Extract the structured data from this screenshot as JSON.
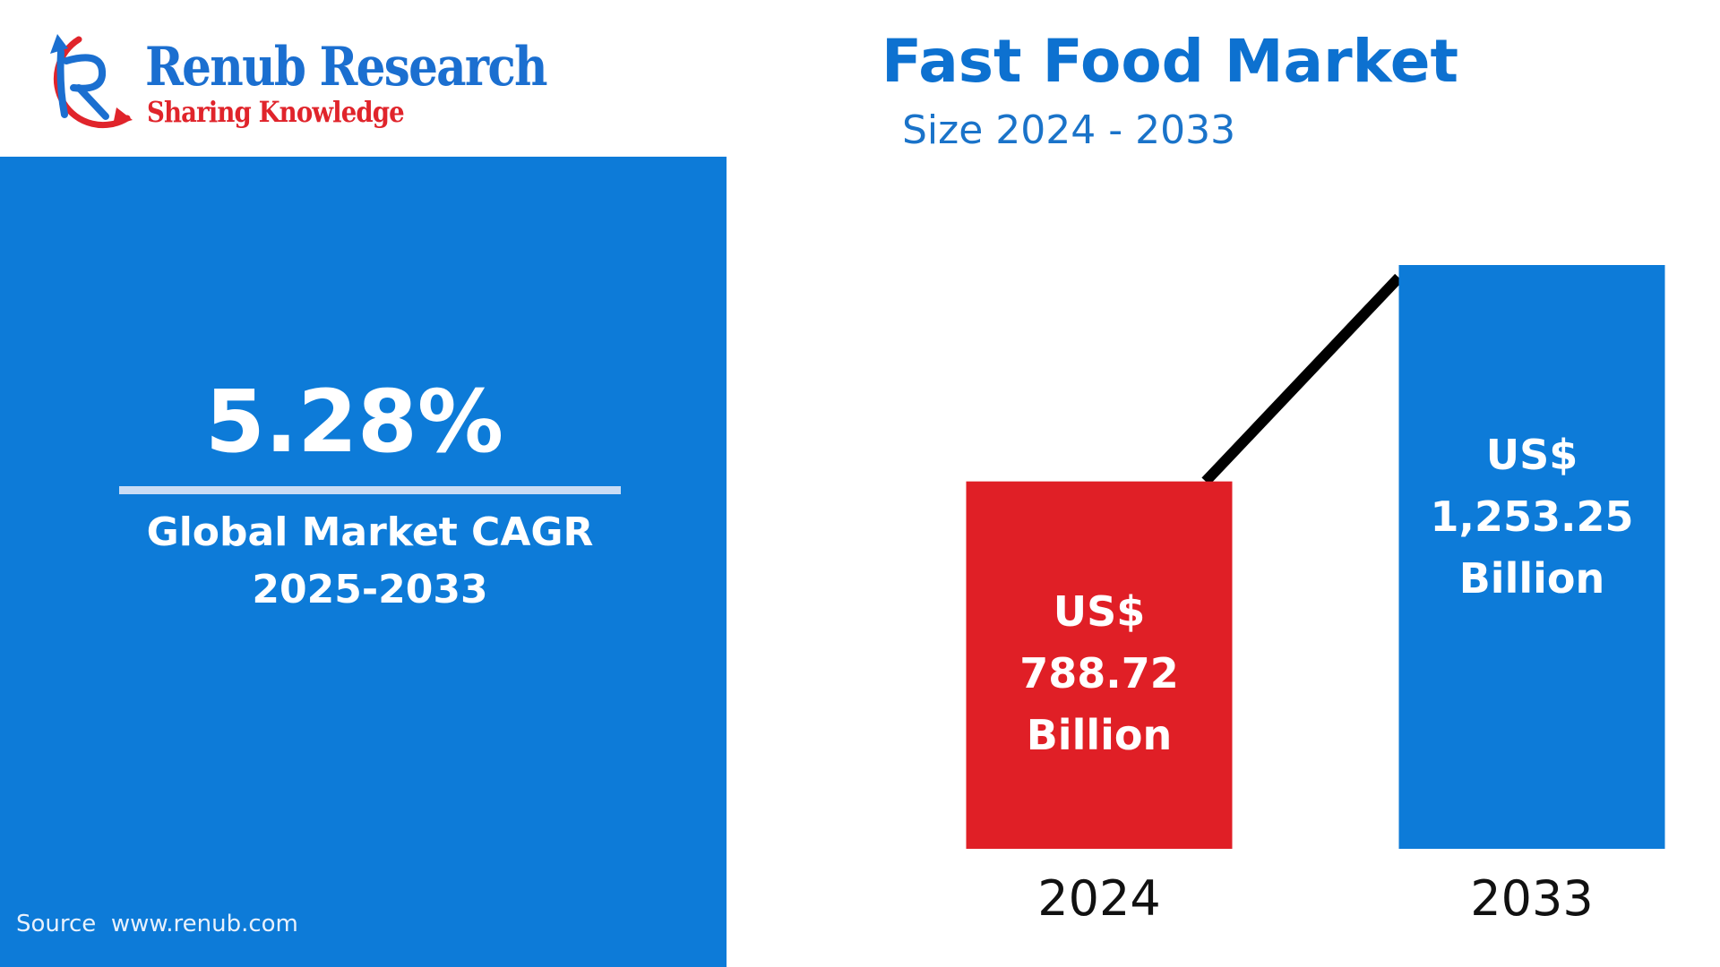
{
  "brand": {
    "name": "Renub Research",
    "tagline": "Sharing Knowledge"
  },
  "left_panel": {
    "cagr_value": "5.28%",
    "cagr_label_line1": "Global Market CAGR",
    "cagr_label_line2": "2025-2033",
    "source": "Source  www.renub.com"
  },
  "colors": {
    "blue": "#0d7bd8",
    "red": "#e01f26",
    "trend": "#000000"
  },
  "chart_data": {
    "type": "bar",
    "title": "Fast Food Market",
    "subtitle": "Size 2024 - 2033",
    "categories": [
      "2024",
      "2033"
    ],
    "values": [
      788.72,
      1253.25
    ],
    "data_labels": [
      [
        "US$",
        "788.72",
        "Billion"
      ],
      [
        "US$",
        "1,253.25",
        "Billion"
      ]
    ],
    "bar_colors": [
      "#e01f26",
      "#0d7bd8"
    ],
    "ylim": [
      0,
      1253.25
    ],
    "grid": false,
    "legend": "none",
    "trend_line": true
  }
}
